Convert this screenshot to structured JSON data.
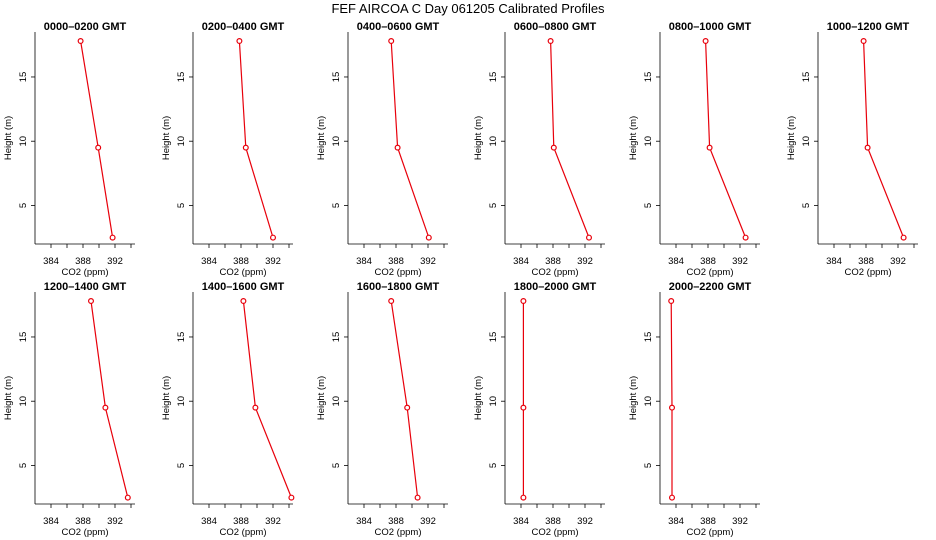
{
  "figure": {
    "title": "FEF AIRCOA C  Day 061205  Calibrated Profiles"
  },
  "chart_data": [
    {
      "type": "line",
      "title": "0000–0200 GMT",
      "xlabel": "CO2 (ppm)",
      "ylabel": "Height (m)",
      "xlim": [
        382,
        394.5
      ],
      "ylim": [
        2,
        18.5
      ],
      "xticks": [
        384,
        388,
        392
      ],
      "yticks": [
        5,
        10,
        15
      ],
      "series": [
        {
          "x": [
            387.7,
            389.9,
            391.7
          ],
          "y": [
            17.8,
            9.5,
            2.5
          ],
          "xerr": [
            0,
            0,
            0
          ]
        }
      ]
    },
    {
      "type": "line",
      "title": "0200–0400 GMT",
      "xlabel": "CO2 (ppm)",
      "ylabel": "Height (m)",
      "xlim": [
        382,
        394.5
      ],
      "ylim": [
        2,
        18.5
      ],
      "xticks": [
        384,
        388,
        392
      ],
      "yticks": [
        5,
        10,
        15
      ],
      "series": [
        {
          "x": [
            387.8,
            388.6,
            392.0
          ],
          "y": [
            17.8,
            9.5,
            2.5
          ],
          "xerr": [
            0,
            0,
            0
          ]
        }
      ]
    },
    {
      "type": "line",
      "title": "0400–0600 GMT",
      "xlabel": "CO2 (ppm)",
      "ylabel": "Height (m)",
      "xlim": [
        382,
        394.5
      ],
      "ylim": [
        2,
        18.5
      ],
      "xticks": [
        384,
        388,
        392
      ],
      "yticks": [
        5,
        10,
        15
      ],
      "series": [
        {
          "x": [
            387.4,
            388.2,
            392.1
          ],
          "y": [
            17.8,
            9.5,
            2.5
          ],
          "xerr": [
            0,
            0,
            0
          ]
        }
      ]
    },
    {
      "type": "line",
      "title": "0600–0800 GMT",
      "xlabel": "CO2 (ppm)",
      "ylabel": "Height (m)",
      "xlim": [
        382,
        394.5
      ],
      "ylim": [
        2,
        18.5
      ],
      "xticks": [
        384,
        388,
        392
      ],
      "yticks": [
        5,
        10,
        15
      ],
      "series": [
        {
          "x": [
            387.7,
            388.1,
            392.5
          ],
          "y": [
            17.8,
            9.5,
            2.5
          ],
          "xerr": [
            0,
            0,
            0
          ]
        }
      ]
    },
    {
      "type": "line",
      "title": "0800–1000 GMT",
      "xlabel": "CO2 (ppm)",
      "ylabel": "Height (m)",
      "xlim": [
        382,
        394.5
      ],
      "ylim": [
        2,
        18.5
      ],
      "xticks": [
        384,
        388,
        392
      ],
      "yticks": [
        5,
        10,
        15
      ],
      "series": [
        {
          "x": [
            387.7,
            388.2,
            392.7
          ],
          "y": [
            17.8,
            9.5,
            2.5
          ],
          "xerr": [
            0,
            0,
            0
          ]
        }
      ]
    },
    {
      "type": "line",
      "title": "1000–1200 GMT",
      "xlabel": "CO2 (ppm)",
      "ylabel": "Height (m)",
      "xlim": [
        382,
        394.5
      ],
      "ylim": [
        2,
        18.5
      ],
      "xticks": [
        384,
        388,
        392
      ],
      "yticks": [
        5,
        10,
        15
      ],
      "series": [
        {
          "x": [
            387.7,
            388.2,
            392.7
          ],
          "y": [
            17.8,
            9.5,
            2.5
          ],
          "xerr": [
            0,
            0,
            0
          ]
        }
      ]
    },
    {
      "type": "line",
      "title": "1200–1400 GMT",
      "xlabel": "CO2 (ppm)",
      "ylabel": "Height (m)",
      "xlim": [
        382,
        394.5
      ],
      "ylim": [
        2,
        18.5
      ],
      "xticks": [
        384,
        388,
        392
      ],
      "yticks": [
        5,
        10,
        15
      ],
      "series": [
        {
          "x": [
            389.0,
            390.8,
            393.6
          ],
          "y": [
            17.8,
            9.5,
            2.5
          ],
          "xerr": [
            0,
            0,
            0
          ]
        }
      ]
    },
    {
      "type": "line",
      "title": "1400–1600 GMT",
      "xlabel": "CO2 (ppm)",
      "ylabel": "Height (m)",
      "xlim": [
        382,
        394.5
      ],
      "ylim": [
        2,
        18.5
      ],
      "xticks": [
        384,
        388,
        392
      ],
      "yticks": [
        5,
        10,
        15
      ],
      "series": [
        {
          "x": [
            388.3,
            389.8,
            394.3
          ],
          "y": [
            17.8,
            9.5,
            2.5
          ],
          "xerr": [
            0,
            0,
            0
          ]
        }
      ]
    },
    {
      "type": "line",
      "title": "1600–1800 GMT",
      "xlabel": "CO2 (ppm)",
      "ylabel": "Height (m)",
      "xlim": [
        382,
        394.5
      ],
      "ylim": [
        2,
        18.5
      ],
      "xticks": [
        384,
        388,
        392
      ],
      "yticks": [
        5,
        10,
        15
      ],
      "series": [
        {
          "x": [
            387.4,
            389.4,
            390.7
          ],
          "y": [
            17.8,
            9.5,
            2.5
          ],
          "xerr": [
            0,
            0,
            0
          ]
        }
      ]
    },
    {
      "type": "line",
      "title": "1800–2000 GMT",
      "xlabel": "CO2 (ppm)",
      "ylabel": "Height (m)",
      "xlim": [
        382,
        394.5
      ],
      "ylim": [
        2,
        18.5
      ],
      "xticks": [
        384,
        388,
        392
      ],
      "yticks": [
        5,
        10,
        15
      ],
      "series": [
        {
          "x": [
            384.3,
            384.3,
            384.3
          ],
          "y": [
            17.8,
            9.5,
            2.5
          ],
          "xerr": [
            0.02,
            0.05,
            0.03
          ]
        }
      ]
    },
    {
      "type": "line",
      "title": "2000–2200 GMT",
      "xlabel": "CO2 (ppm)",
      "ylabel": "Height (m)",
      "xlim": [
        382,
        394.5
      ],
      "ylim": [
        2,
        18.5
      ],
      "xticks": [
        384,
        388,
        392
      ],
      "yticks": [
        5,
        10,
        15
      ],
      "series": [
        {
          "x": [
            383.4,
            383.5,
            383.5
          ],
          "y": [
            17.8,
            9.5,
            2.5
          ],
          "xerr": [
            0.05,
            0.08,
            0.04
          ]
        }
      ]
    }
  ],
  "colors": {
    "series": "#e8000b",
    "axis": "#000000"
  }
}
